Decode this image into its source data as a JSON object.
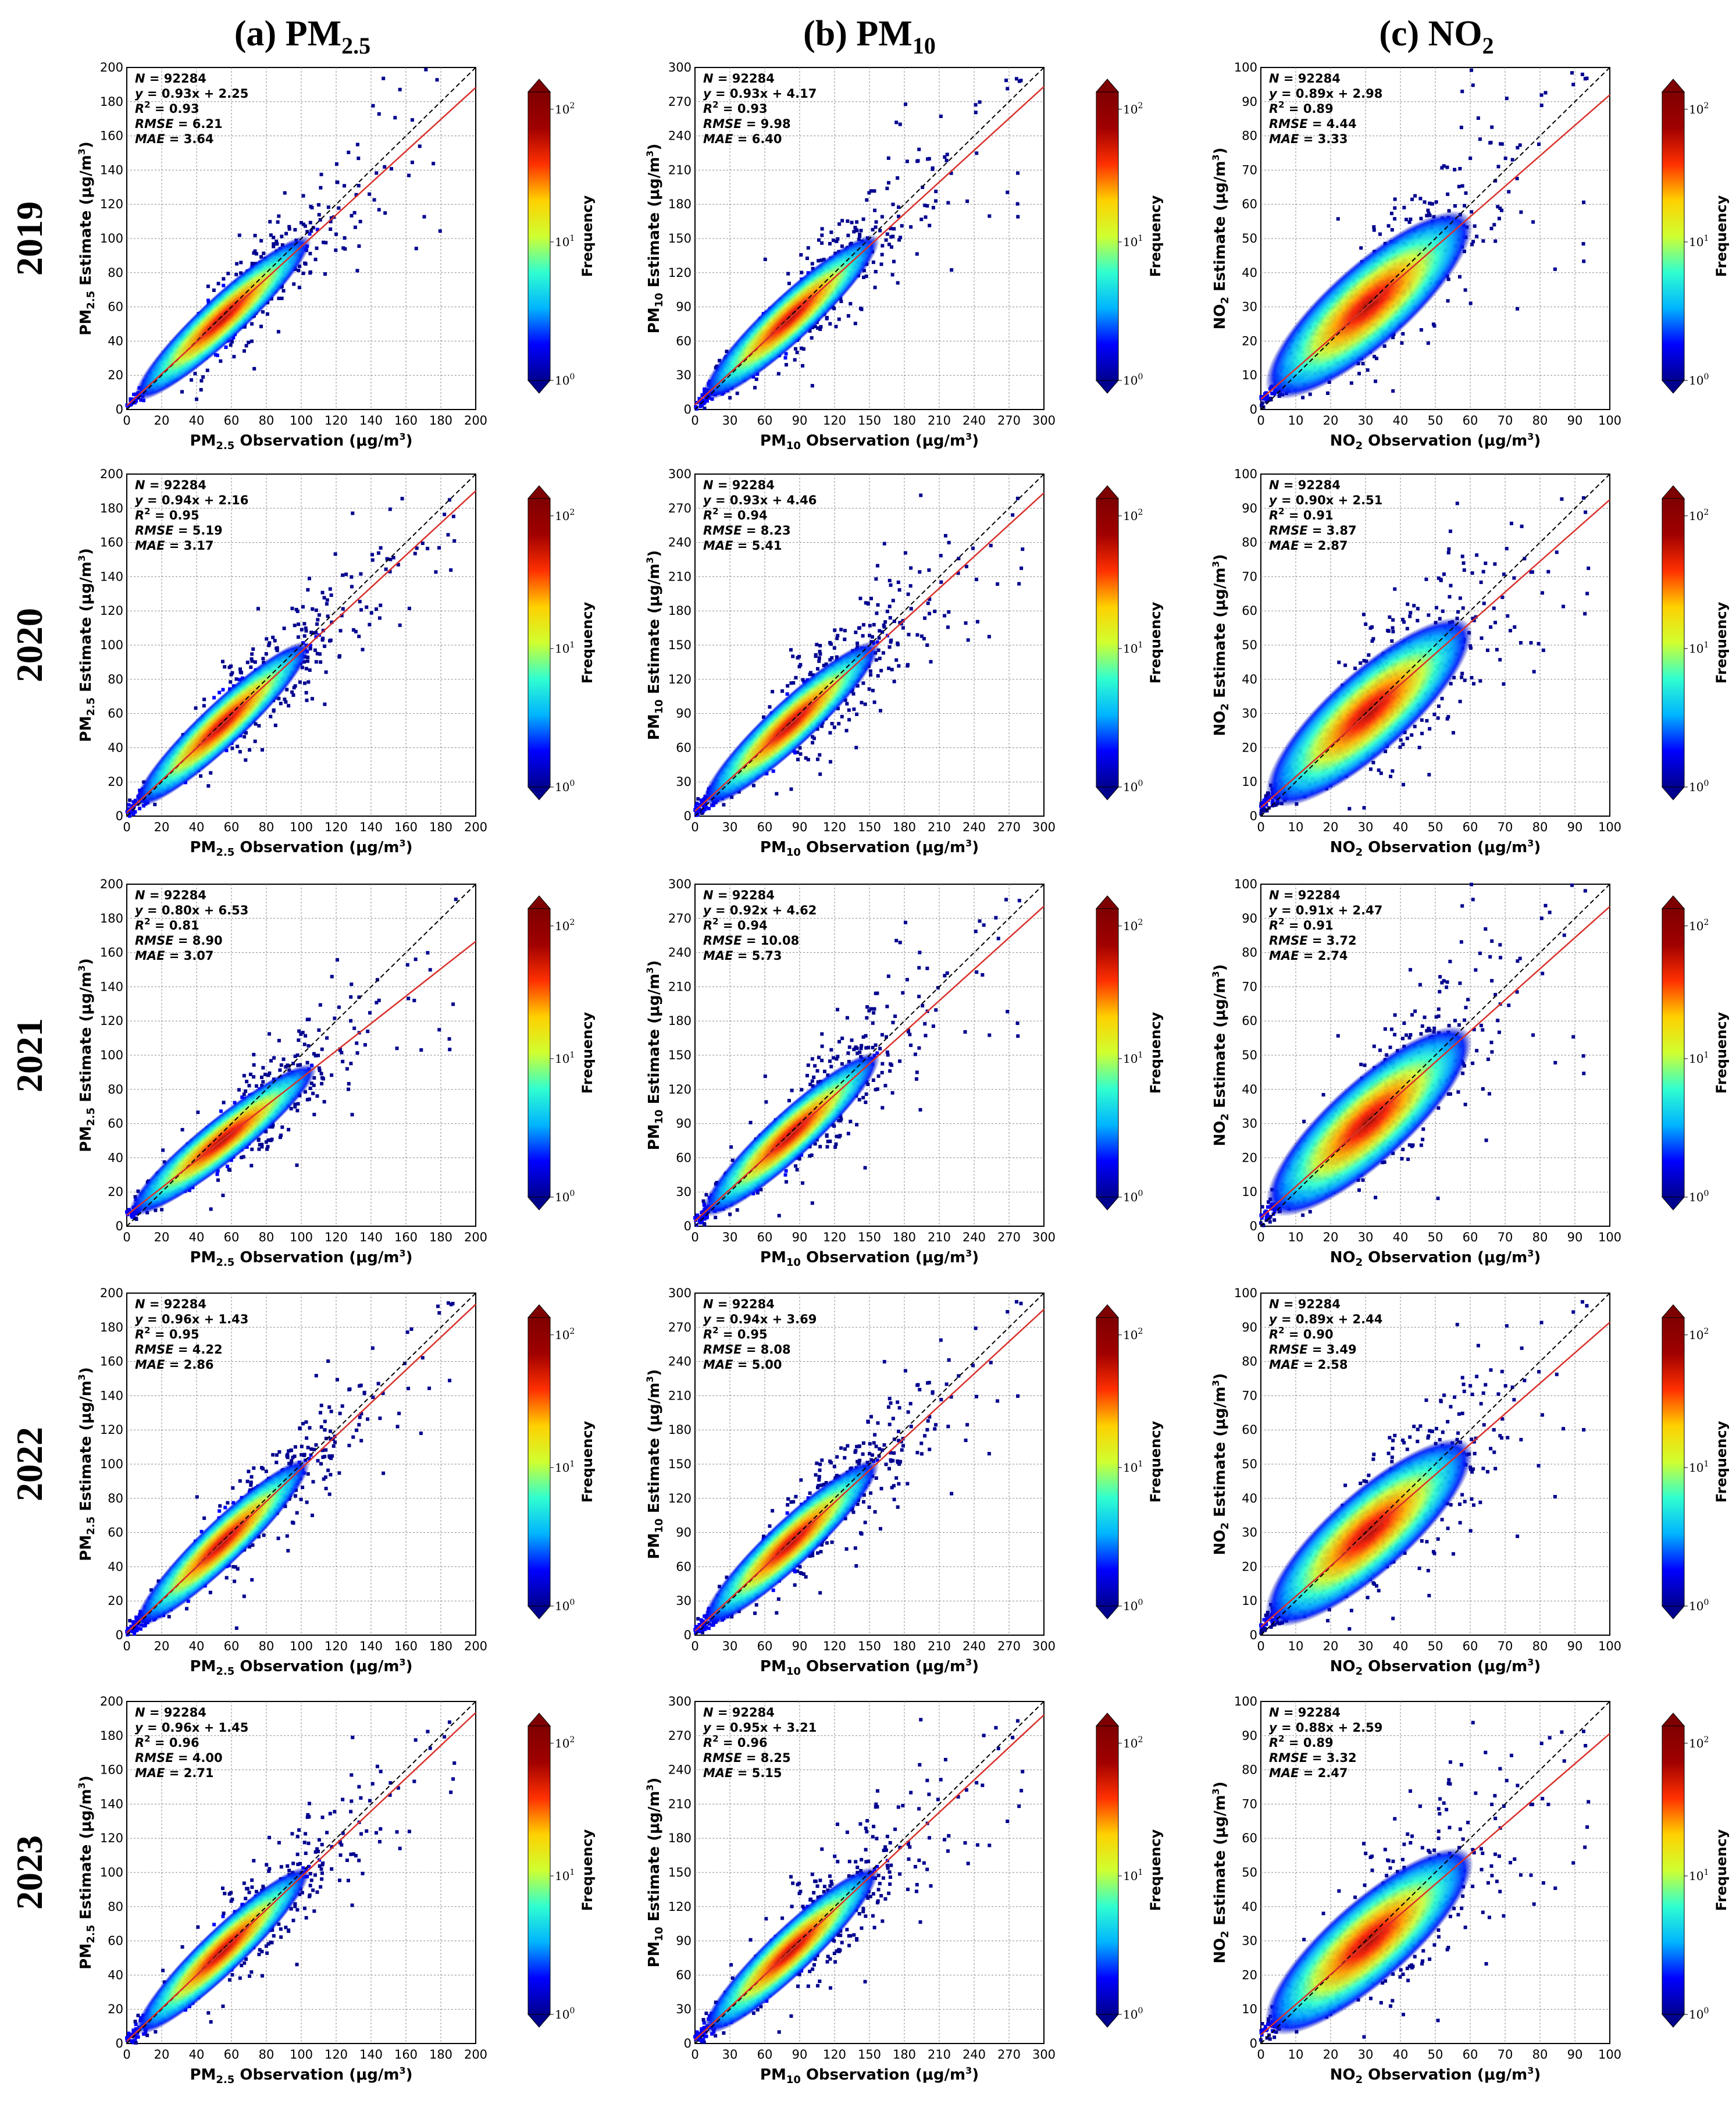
{
  "columns": [
    {
      "label": "(a) PM",
      "sub": "2.5"
    },
    {
      "label": "(b) PM",
      "sub": "10"
    },
    {
      "label": "(c) NO",
      "sub": "2"
    }
  ],
  "rows": [
    "2019",
    "2020",
    "2021",
    "2022",
    "2023"
  ],
  "colorbar": {
    "label": "Frequency",
    "ticks": [
      {
        "base": "10",
        "exp": "0"
      },
      {
        "base": "10",
        "exp": "1"
      },
      {
        "base": "10",
        "exp": "2"
      }
    ],
    "colors": [
      "#00008f",
      "#0000ff",
      "#00b4ff",
      "#30ffd0",
      "#d0ff30",
      "#ffd000",
      "#ff3000",
      "#a00000",
      "#7f0000"
    ]
  },
  "colors": {
    "fit_line": "#d9302a",
    "identity_line": "#000000"
  },
  "chart_data": [
    {
      "pollutant": "PM2.5",
      "type": "scatter",
      "xlim": [
        0,
        200
      ],
      "ylim": [
        0,
        200
      ],
      "ticks": [
        0,
        20,
        40,
        60,
        80,
        100,
        120,
        140,
        160,
        180,
        200
      ],
      "xlabel": "PM2.5 Observation (μg/m3)",
      "ylabel": "PM2.5 Estimate (μg/m3)",
      "panels": [
        {
          "year": "2019",
          "N": "92284",
          "slope": 0.93,
          "intercept": 2.25,
          "eq": "0.93x + 2.25",
          "r2": "0.93",
          "rmse": "6.21",
          "mae": "3.64"
        },
        {
          "year": "2020",
          "N": "92284",
          "slope": 0.94,
          "intercept": 2.16,
          "eq": "0.94x + 2.16",
          "r2": "0.95",
          "rmse": "5.19",
          "mae": "3.17"
        },
        {
          "year": "2021",
          "N": "92284",
          "slope": 0.8,
          "intercept": 6.53,
          "eq": "0.80x + 6.53",
          "r2": "0.81",
          "rmse": "8.90",
          "mae": "3.07"
        },
        {
          "year": "2022",
          "N": "92284",
          "slope": 0.96,
          "intercept": 1.43,
          "eq": "0.96x + 1.43",
          "r2": "0.95",
          "rmse": "4.22",
          "mae": "2.86"
        },
        {
          "year": "2023",
          "N": "92284",
          "slope": 0.96,
          "intercept": 1.45,
          "eq": "0.96x + 1.45",
          "r2": "0.96",
          "rmse": "4.00",
          "mae": "2.71"
        }
      ]
    },
    {
      "pollutant": "PM10",
      "type": "scatter",
      "xlim": [
        0,
        300
      ],
      "ylim": [
        0,
        300
      ],
      "ticks": [
        0,
        30,
        60,
        90,
        120,
        150,
        180,
        210,
        240,
        270,
        300
      ],
      "xlabel": "PM10 Observation (μg/m3)",
      "ylabel": "PM10 Estimate (μg/m3)",
      "panels": [
        {
          "year": "2019",
          "N": "92284",
          "slope": 0.93,
          "intercept": 4.17,
          "eq": "0.93x + 4.17",
          "r2": "0.93",
          "rmse": "9.98",
          "mae": "6.40"
        },
        {
          "year": "2020",
          "N": "92284",
          "slope": 0.93,
          "intercept": 4.46,
          "eq": "0.93x + 4.46",
          "r2": "0.94",
          "rmse": "8.23",
          "mae": "5.41"
        },
        {
          "year": "2021",
          "N": "92284",
          "slope": 0.92,
          "intercept": 4.62,
          "eq": "0.92x + 4.62",
          "r2": "0.94",
          "rmse": "10.08",
          "mae": "5.73"
        },
        {
          "year": "2022",
          "N": "92284",
          "slope": 0.94,
          "intercept": 3.69,
          "eq": "0.94x + 3.69",
          "r2": "0.95",
          "rmse": "8.08",
          "mae": "5.00"
        },
        {
          "year": "2023",
          "N": "92284",
          "slope": 0.95,
          "intercept": 3.21,
          "eq": "0.95x + 3.21",
          "r2": "0.96",
          "rmse": "8.25",
          "mae": "5.15"
        }
      ]
    },
    {
      "pollutant": "NO2",
      "type": "scatter",
      "xlim": [
        0,
        100
      ],
      "ylim": [
        0,
        100
      ],
      "ticks": [
        0,
        10,
        20,
        30,
        40,
        50,
        60,
        70,
        80,
        90,
        100
      ],
      "xlabel": "NO2 Observation (μg/m3)",
      "ylabel": "NO2 Estimate (μg/m3)",
      "panels": [
        {
          "year": "2019",
          "N": "92284",
          "slope": 0.89,
          "intercept": 2.98,
          "eq": "0.89x + 2.98",
          "r2": "0.89",
          "rmse": "4.44",
          "mae": "3.33"
        },
        {
          "year": "2020",
          "N": "92284",
          "slope": 0.9,
          "intercept": 2.51,
          "eq": "0.90x + 2.51",
          "r2": "0.91",
          "rmse": "3.87",
          "mae": "2.87"
        },
        {
          "year": "2021",
          "N": "92284",
          "slope": 0.91,
          "intercept": 2.47,
          "eq": "0.91x + 2.47",
          "r2": "0.91",
          "rmse": "3.72",
          "mae": "2.74"
        },
        {
          "year": "2022",
          "N": "92284",
          "slope": 0.89,
          "intercept": 2.44,
          "eq": "0.89x + 2.44",
          "r2": "0.90",
          "rmse": "3.49",
          "mae": "2.58"
        },
        {
          "year": "2023",
          "N": "92284",
          "slope": 0.88,
          "intercept": 2.59,
          "eq": "0.88x + 2.59",
          "r2": "0.89",
          "rmse": "3.32",
          "mae": "2.47"
        }
      ]
    }
  ]
}
